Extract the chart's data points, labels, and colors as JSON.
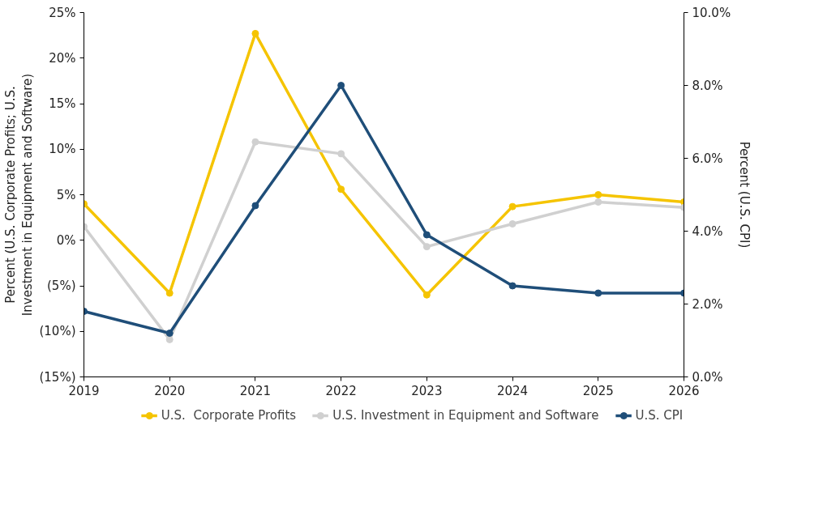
{
  "chart_data": {
    "type": "line",
    "ylabel": "Percent (U.S. Corporate Profits; U.S. Investment in Equipment and Software)",
    "y2label": "Percent (U.S. CPI)",
    "x": [
      2019,
      2020,
      2021,
      2022,
      2023,
      2024,
      2025,
      2026
    ],
    "xlim": [
      2019,
      2026
    ],
    "xticks": [
      2019,
      2020,
      2021,
      2022,
      2023,
      2024,
      2025,
      2026
    ],
    "ylim": [
      -15,
      25
    ],
    "yticks": [
      {
        "value": -15,
        "label": "(15%)"
      },
      {
        "value": -10,
        "label": "(10%)"
      },
      {
        "value": -5,
        "label": "(5%)"
      },
      {
        "value": 0,
        "label": "0%"
      },
      {
        "value": 5,
        "label": "5%"
      },
      {
        "value": 10,
        "label": "10%"
      },
      {
        "value": 15,
        "label": "15%"
      },
      {
        "value": 20,
        "label": "20%"
      },
      {
        "value": 25,
        "label": "25%"
      }
    ],
    "y2lim": [
      0,
      10
    ],
    "y2ticks": [
      {
        "value": 0,
        "label": "0.0%"
      },
      {
        "value": 2,
        "label": "2.0%"
      },
      {
        "value": 4,
        "label": "4.0%"
      },
      {
        "value": 6,
        "label": "6.0%"
      },
      {
        "value": 8,
        "label": "8.0%"
      },
      {
        "value": 10,
        "label": "10.0%"
      }
    ],
    "series": [
      {
        "name": "U.S.  Corporate Profits",
        "color": "#f5c400",
        "values": [
          4.0,
          -5.8,
          22.7,
          5.6,
          -6.0,
          3.7,
          5.0,
          4.2
        ]
      },
      {
        "name": "U.S. Investment in Equipment and Software",
        "color": "#d0d0d0",
        "values": [
          1.5,
          -10.9,
          10.8,
          9.5,
          -0.7,
          1.8,
          4.2,
          3.6
        ]
      },
      {
        "name": "U.S. CPI",
        "color": "#1f4e79",
        "axis": "y2",
        "values": [
          1.8,
          1.2,
          4.7,
          8.0,
          3.9,
          2.5,
          2.3,
          2.3
        ]
      }
    ],
    "marker": "circle",
    "line_style": "solid",
    "grid": false,
    "legend": "bottom"
  }
}
